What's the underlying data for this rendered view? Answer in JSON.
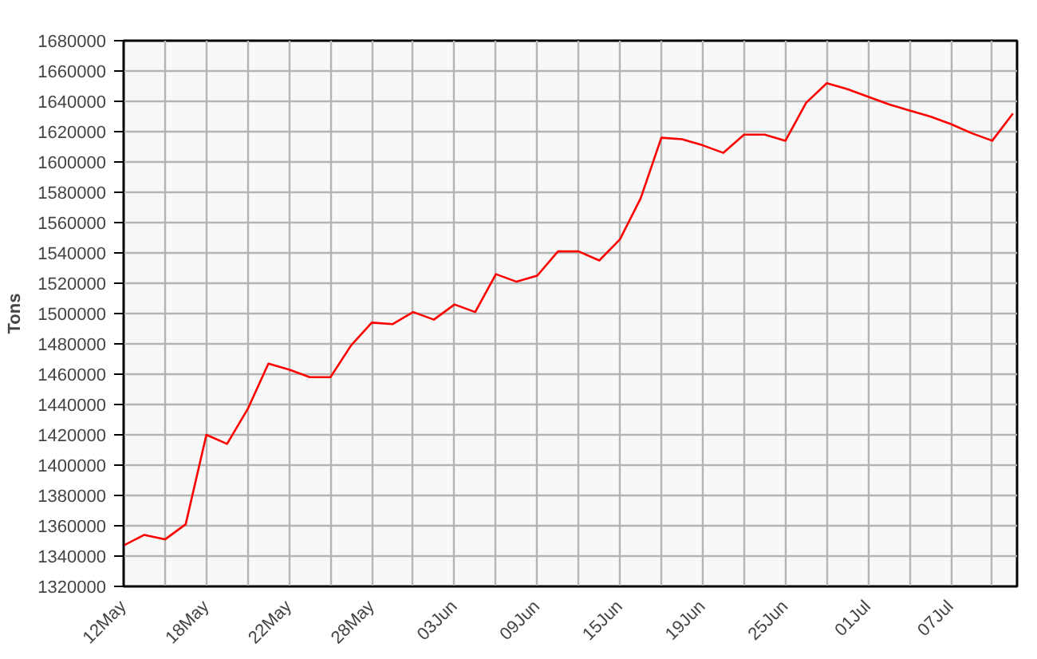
{
  "chart_data": {
    "type": "line",
    "ylabel": "Tons",
    "categories": [
      "12May",
      null,
      null,
      null,
      "18May",
      null,
      null,
      null,
      "22May",
      null,
      null,
      null,
      "28May",
      null,
      null,
      null,
      "03Jun",
      null,
      null,
      null,
      "09Jun",
      null,
      null,
      null,
      "15Jun",
      null,
      null,
      null,
      "19Jun",
      null,
      null,
      null,
      "25Jun",
      null,
      null,
      null,
      "01Jul",
      null,
      null,
      null,
      "07Jul",
      null,
      null,
      null
    ],
    "series": [
      {
        "color": "#ff0000",
        "values": [
          1347000,
          1354000,
          1351000,
          1361000,
          1420000,
          1414000,
          1437000,
          1467000,
          1463000,
          1458000,
          1458000,
          1479000,
          1494000,
          1493000,
          1501000,
          1496000,
          1506000,
          1501000,
          1526000,
          1521000,
          1525000,
          1541000,
          1541000,
          1535000,
          1549000,
          1576000,
          1616000,
          1615000,
          1611000,
          1606000,
          1618000,
          1618000,
          1614000,
          1639000,
          1652000,
          1648000,
          1643000,
          1638000,
          1634000,
          1630000,
          1625000,
          1619000,
          1614000,
          1632000
        ]
      }
    ],
    "ylim": [
      1320000,
      1680000
    ],
    "yticks": [
      1320000,
      1340000,
      1360000,
      1380000,
      1400000,
      1420000,
      1440000,
      1460000,
      1480000,
      1500000,
      1520000,
      1540000,
      1560000,
      1580000,
      1600000,
      1620000,
      1640000,
      1660000,
      1680000
    ],
    "grid": true,
    "marker": "none",
    "line_style": "solid"
  }
}
